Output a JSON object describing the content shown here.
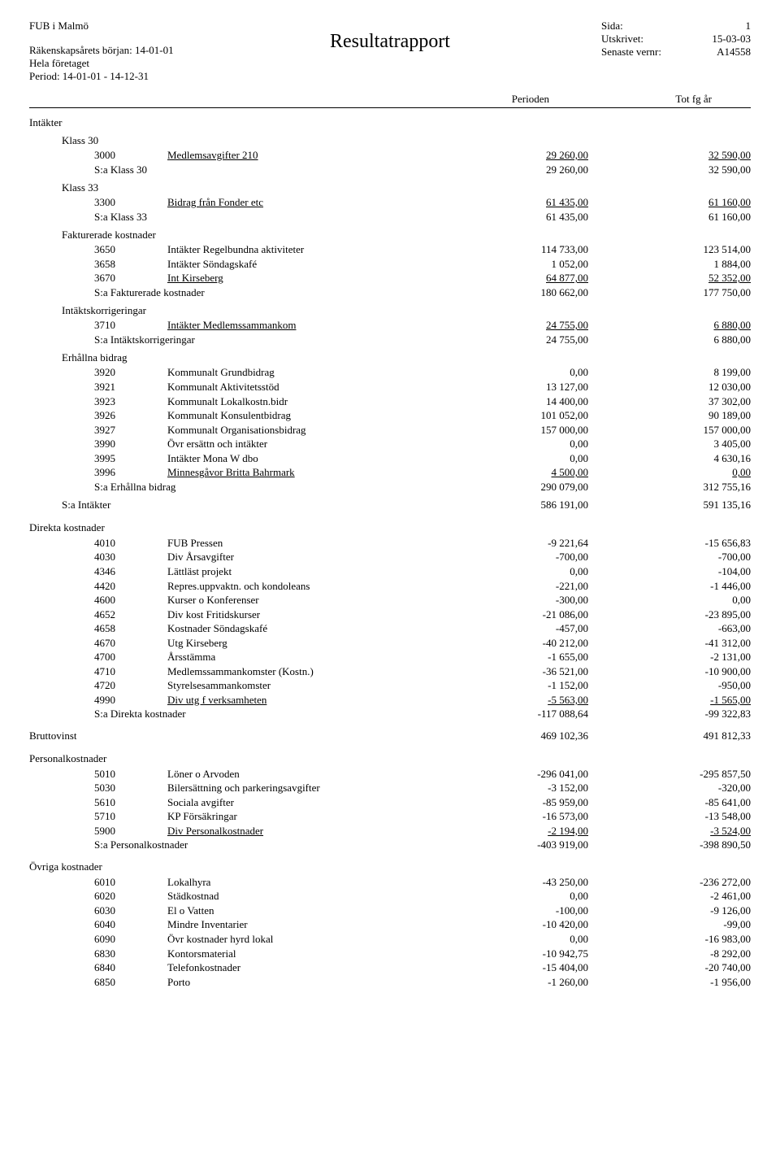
{
  "header": {
    "org": "FUB i Malmö",
    "title": "Resultatrapport",
    "line2": "Räkenskapsårets början: 14-01-01",
    "line3": "Hela företaget",
    "line4": "Period: 14-01-01 - 14-12-31",
    "meta": [
      {
        "label": "Sida:",
        "value": "1"
      },
      {
        "label": "Utskrivet:",
        "value": "15-03-03"
      },
      {
        "label": "Senaste vernr:",
        "value": "A14558"
      }
    ]
  },
  "columns": {
    "c2": "Perioden",
    "c3": "Tot fg år"
  },
  "sections": [
    {
      "title": "Intäkter",
      "indentTitle": false,
      "groups": [
        {
          "name": "Klass 30",
          "rows": [
            {
              "code": "3000",
              "label": "Medlemsavgifter 210",
              "v1": "29 260,00",
              "v2": "32 590,00",
              "underline": true
            }
          ],
          "sum": {
            "label": "S:a Klass 30",
            "v1": "29 260,00",
            "v2": "32 590,00"
          }
        },
        {
          "name": "Klass 33",
          "rows": [
            {
              "code": "3300",
              "label": "Bidrag från Fonder etc",
              "v1": "61 435,00",
              "v2": "61 160,00",
              "underline": true
            }
          ],
          "sum": {
            "label": "S:a Klass 33",
            "v1": "61 435,00",
            "v2": "61 160,00"
          }
        },
        {
          "name": "Fakturerade kostnader",
          "rows": [
            {
              "code": "3650",
              "label": "Intäkter Regelbundna aktiviteter",
              "v1": "114 733,00",
              "v2": "123 514,00"
            },
            {
              "code": "3658",
              "label": "Intäkter Söndagskafé",
              "v1": "1 052,00",
              "v2": "1 884,00"
            },
            {
              "code": "3670",
              "label": "Int Kirseberg",
              "v1": "64 877,00",
              "v2": "52 352,00",
              "underline": true
            }
          ],
          "sum": {
            "label": "S:a Fakturerade kostnader",
            "v1": "180 662,00",
            "v2": "177 750,00"
          }
        },
        {
          "name": "Intäktskorrigeringar",
          "rows": [
            {
              "code": "3710",
              "label": "Intäkter Medlemssammankom",
              "v1": "24 755,00",
              "v2": "6 880,00",
              "underline": true
            }
          ],
          "sum": {
            "label": "S:a Intäktskorrigeringar",
            "v1": "24 755,00",
            "v2": "6 880,00"
          }
        },
        {
          "name": "Erhållna bidrag",
          "rows": [
            {
              "code": "3920",
              "label": "Kommunalt Grundbidrag",
              "v1": "0,00",
              "v2": "8 199,00"
            },
            {
              "code": "3921",
              "label": "Kommunalt Aktivitetsstöd",
              "v1": "13 127,00",
              "v2": "12 030,00"
            },
            {
              "code": "3923",
              "label": "Kommunalt Lokalkostn.bidr",
              "v1": "14 400,00",
              "v2": "37 302,00"
            },
            {
              "code": "3926",
              "label": "Kommunalt Konsulentbidrag",
              "v1": "101 052,00",
              "v2": "90 189,00"
            },
            {
              "code": "3927",
              "label": "Kommunalt Organisationsbidrag",
              "v1": "157 000,00",
              "v2": "157 000,00"
            },
            {
              "code": "3990",
              "label": "Övr ersättn och intäkter",
              "v1": "0,00",
              "v2": "3 405,00"
            },
            {
              "code": "3995",
              "label": "Intäkter Mona W dbo",
              "v1": "0,00",
              "v2": "4 630,16"
            },
            {
              "code": "3996",
              "label": "Minnesgåvor Britta Bahrmark",
              "v1": "4 500,00",
              "v2": "0,00",
              "underline": true
            }
          ],
          "sum": {
            "label": "S:a Erhållna bidrag",
            "v1": "290 079,00",
            "v2": "312 755,16"
          }
        }
      ],
      "sectionSum": {
        "label": "S:a Intäkter",
        "v1": "586 191,00",
        "v2": "591 135,16"
      }
    },
    {
      "title": "Direkta kostnader",
      "indentTitle": false,
      "groups": [
        {
          "name": null,
          "rows": [
            {
              "code": "4010",
              "label": "FUB Pressen",
              "v1": "-9 221,64",
              "v2": "-15 656,83"
            },
            {
              "code": "4030",
              "label": "Div Årsavgifter",
              "v1": "-700,00",
              "v2": "-700,00"
            },
            {
              "code": "4346",
              "label": "Lättläst projekt",
              "v1": "0,00",
              "v2": "-104,00"
            },
            {
              "code": "4420",
              "label": "Repres.uppvaktn. och kondoleans",
              "v1": "-221,00",
              "v2": "-1 446,00"
            },
            {
              "code": "4600",
              "label": "Kurser o Konferenser",
              "v1": "-300,00",
              "v2": "0,00"
            },
            {
              "code": "4652",
              "label": "Div kost Fritidskurser",
              "v1": "-21 086,00",
              "v2": "-23 895,00"
            },
            {
              "code": "4658",
              "label": "Kostnader Söndagskafé",
              "v1": "-457,00",
              "v2": "-663,00"
            },
            {
              "code": "4670",
              "label": "Utg Kirseberg",
              "v1": "-40 212,00",
              "v2": "-41 312,00"
            },
            {
              "code": "4700",
              "label": "Årsstämma",
              "v1": "-1 655,00",
              "v2": "-2 131,00"
            },
            {
              "code": "4710",
              "label": "Medlemssammankomster (Kostn.)",
              "v1": "-36 521,00",
              "v2": "-10 900,00"
            },
            {
              "code": "4720",
              "label": "Styrelsesammankomster",
              "v1": "-1 152,00",
              "v2": "-950,00"
            },
            {
              "code": "4990",
              "label": "Div utg f verksamheten",
              "v1": "-5 563,00",
              "v2": "-1 565,00",
              "underline": true
            }
          ],
          "sum": {
            "label": "S:a Direkta kostnader",
            "v1": "-117 088,64",
            "v2": "-99 322,83"
          }
        }
      ]
    }
  ],
  "bruttovinst": {
    "label": "Bruttovinst",
    "v1": "469 102,36",
    "v2": "491 812,33"
  },
  "postBrutto": [
    {
      "title": "Personalkostnader",
      "rows": [
        {
          "code": "5010",
          "label": "Löner o Arvoden",
          "v1": "-296 041,00",
          "v2": "-295 857,50"
        },
        {
          "code": "5030",
          "label": "Bilersättning och parkeringsavgifter",
          "v1": "-3 152,00",
          "v2": "-320,00"
        },
        {
          "code": "5610",
          "label": "Sociala avgifter",
          "v1": "-85 959,00",
          "v2": "-85 641,00"
        },
        {
          "code": "5710",
          "label": "KP Försäkringar",
          "v1": "-16 573,00",
          "v2": "-13 548,00"
        },
        {
          "code": "5900",
          "label": "Div Personalkostnader",
          "v1": "-2 194,00",
          "v2": "-3 524,00",
          "underline": true
        }
      ],
      "sum": {
        "label": "S:a Personalkostnader",
        "v1": "-403 919,00",
        "v2": "-398 890,50"
      }
    },
    {
      "title": "Övriga kostnader",
      "rows": [
        {
          "code": "6010",
          "label": "Lokalhyra",
          "v1": "-43 250,00",
          "v2": "-236 272,00"
        },
        {
          "code": "6020",
          "label": "Städkostnad",
          "v1": "0,00",
          "v2": "-2 461,00"
        },
        {
          "code": "6030",
          "label": "El o Vatten",
          "v1": "-100,00",
          "v2": "-9 126,00"
        },
        {
          "code": "6040",
          "label": "Mindre Inventarier",
          "v1": "-10 420,00",
          "v2": "-99,00"
        },
        {
          "code": "6090",
          "label": "Övr kostnader hyrd lokal",
          "v1": "0,00",
          "v2": "-16 983,00"
        },
        {
          "code": "6830",
          "label": "Kontorsmaterial",
          "v1": "-10 942,75",
          "v2": "-8 292,00"
        },
        {
          "code": "6840",
          "label": "Telefonkostnader",
          "v1": "-15 404,00",
          "v2": "-20 740,00"
        },
        {
          "code": "6850",
          "label": "Porto",
          "v1": "-1 260,00",
          "v2": "-1 956,00"
        }
      ]
    }
  ]
}
